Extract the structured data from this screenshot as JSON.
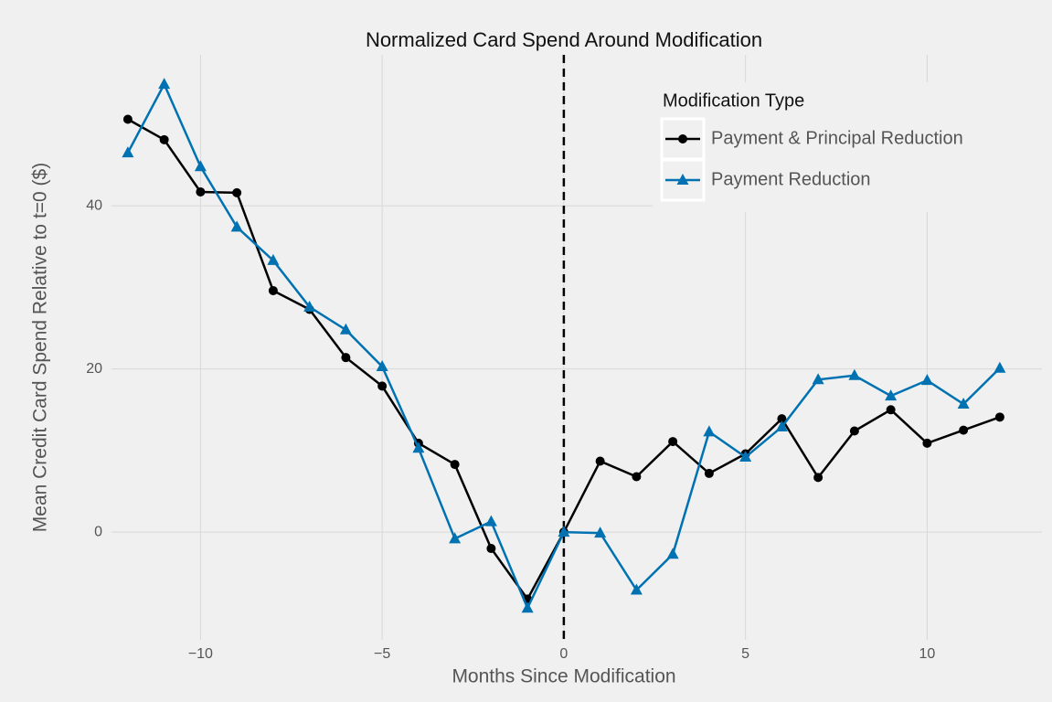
{
  "chart_data": {
    "type": "line",
    "title": "Normalized Card Spend Around Modification",
    "x_label": "Months Since Modification",
    "y_label": "Mean Credit Card Spend Relative to t=0 ($)",
    "legend_title": "Modification Type",
    "legend_position": "top-right",
    "grid": true,
    "vline": 0,
    "x": [
      -12,
      -11,
      -10,
      -9,
      -8,
      -7,
      -6,
      -5,
      -4,
      -3,
      -2,
      -1,
      0,
      1,
      2,
      3,
      4,
      5,
      6,
      7,
      8,
      9,
      10,
      11,
      12
    ],
    "series": [
      {
        "name": "Payment & Principal Reduction",
        "color": "#000000",
        "marker": "circle",
        "values": [
          50.6,
          48.1,
          41.7,
          41.6,
          29.6,
          27.3,
          21.4,
          17.9,
          10.9,
          8.3,
          -2.0,
          -8.2,
          0,
          8.7,
          6.8,
          11.1,
          7.2,
          9.6,
          13.9,
          6.7,
          12.4,
          15.0,
          10.9,
          12.5,
          14.1
        ]
      },
      {
        "name": "Payment Reduction",
        "color": "#0072b2",
        "marker": "triangle",
        "values": [
          46.5,
          54.9,
          44.8,
          37.4,
          33.3,
          27.6,
          24.8,
          20.3,
          10.3,
          -0.8,
          1.3,
          -9.3,
          0,
          -0.1,
          -7.1,
          -2.7,
          12.3,
          9.2,
          12.9,
          18.7,
          19.2,
          16.7,
          18.6,
          15.7,
          20.1
        ]
      }
    ],
    "xlim": [
      -12.45,
      13.16
    ],
    "ylim": [
      -13.2,
      58.5
    ],
    "xticks": [
      {
        "value": -10,
        "label": "−10"
      },
      {
        "value": -5,
        "label": "−5"
      },
      0,
      5,
      10
    ],
    "yticks": [
      0,
      20,
      40
    ]
  }
}
